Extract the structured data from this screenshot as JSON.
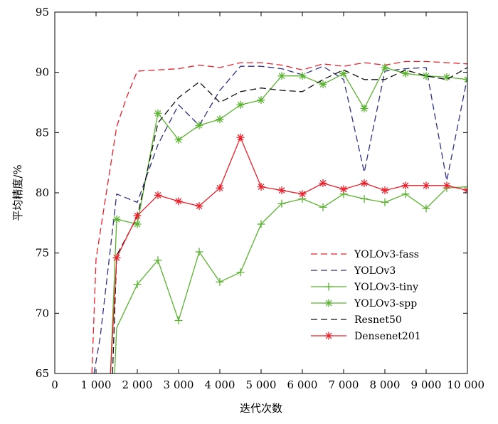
{
  "chart_data": {
    "type": "line",
    "title": "",
    "xlabel": "迭代次数",
    "ylabel": "平均精度/%",
    "xlim": [
      0,
      10000
    ],
    "ylim": [
      65,
      95
    ],
    "x_ticks": [
      {
        "value": 0,
        "label": "0"
      },
      {
        "value": 1000,
        "label": "1 000"
      },
      {
        "value": 2000,
        "label": "2 000"
      },
      {
        "value": 3000,
        "label": "3 000"
      },
      {
        "value": 4000,
        "label": "4 000"
      },
      {
        "value": 5000,
        "label": "5 000"
      },
      {
        "value": 6000,
        "label": "6 000"
      },
      {
        "value": 7000,
        "label": "7 000"
      },
      {
        "value": 8000,
        "label": "8 000"
      },
      {
        "value": 9000,
        "label": "9 000"
      },
      {
        "value": 10000,
        "label": "10 000"
      }
    ],
    "y_ticks": [
      {
        "value": 65,
        "label": "65"
      },
      {
        "value": 70,
        "label": "70"
      },
      {
        "value": 75,
        "label": "75"
      },
      {
        "value": 80,
        "label": "80"
      },
      {
        "value": 85,
        "label": "85"
      },
      {
        "value": 90,
        "label": "90"
      },
      {
        "value": 95,
        "label": "95"
      }
    ],
    "legend_position": "bottom-right",
    "series": [
      {
        "name": "YOLOv3-fass",
        "color": "#e8202a",
        "style": "dashed",
        "marker": "none",
        "points": [
          [
            900,
            65
          ],
          [
            1000,
            74.5
          ],
          [
            1250,
            80
          ],
          [
            1500,
            85.5
          ],
          [
            1750,
            88
          ],
          [
            2000,
            90.1
          ],
          [
            2500,
            90.2
          ],
          [
            3000,
            90.3
          ],
          [
            3500,
            90.6
          ],
          [
            4000,
            90.4
          ],
          [
            4500,
            90.8
          ],
          [
            5000,
            90.8
          ],
          [
            5500,
            90.6
          ],
          [
            6000,
            90.2
          ],
          [
            6500,
            90.7
          ],
          [
            7000,
            90.5
          ],
          [
            7500,
            90.8
          ],
          [
            8000,
            90.6
          ],
          [
            8500,
            90.9
          ],
          [
            9000,
            90.9
          ],
          [
            9500,
            90.8
          ],
          [
            10000,
            90.7
          ]
        ]
      },
      {
        "name": "YOLOv3",
        "color": "#2e3283",
        "style": "dashed",
        "marker": "none",
        "points": [
          [
            950,
            65
          ],
          [
            1100,
            68
          ],
          [
            1500,
            79.9
          ],
          [
            2000,
            79.2
          ],
          [
            2500,
            84
          ],
          [
            3000,
            87.3
          ],
          [
            3500,
            85.6
          ],
          [
            4000,
            88.5
          ],
          [
            4500,
            90.5
          ],
          [
            5000,
            90.5
          ],
          [
            5500,
            90.3
          ],
          [
            6000,
            89.8
          ],
          [
            6500,
            90.5
          ],
          [
            7000,
            89.4
          ],
          [
            7500,
            81.7
          ],
          [
            8000,
            90.1
          ],
          [
            8500,
            90.3
          ],
          [
            9000,
            90.4
          ],
          [
            9500,
            81
          ],
          [
            10000,
            89.6
          ]
        ]
      },
      {
        "name": "YOLOv3-tiny",
        "color": "#5ab230",
        "style": "solid",
        "marker": "plus",
        "points": [
          [
            1450,
            65
          ],
          [
            1500,
            68.8
          ],
          [
            2000,
            72.4
          ],
          [
            2500,
            74.4
          ],
          [
            3000,
            69.4
          ],
          [
            3500,
            75.1
          ],
          [
            4000,
            72.6
          ],
          [
            4500,
            73.4
          ],
          [
            5000,
            77.4
          ],
          [
            5500,
            79.1
          ],
          [
            6000,
            79.5
          ],
          [
            6500,
            78.8
          ],
          [
            7000,
            79.9
          ],
          [
            7500,
            79.5
          ],
          [
            8000,
            79.2
          ],
          [
            8500,
            79.9
          ],
          [
            9000,
            78.7
          ],
          [
            9500,
            80.4
          ],
          [
            10000,
            80.5
          ]
        ],
        "marked": [
          0,
          0,
          1,
          1,
          1,
          1,
          1,
          1,
          1,
          1,
          1,
          1,
          1,
          1,
          1,
          1,
          1,
          1,
          1
        ]
      },
      {
        "name": "YOLOv3-spp",
        "color": "#5ab230",
        "style": "solid",
        "marker": "asterisk",
        "points": [
          [
            1350,
            65
          ],
          [
            1500,
            77.8
          ],
          [
            2000,
            77.4
          ],
          [
            2500,
            86.6
          ],
          [
            3000,
            84.4
          ],
          [
            3500,
            85.6
          ],
          [
            4000,
            86.1
          ],
          [
            4500,
            87.3
          ],
          [
            5000,
            87.7
          ],
          [
            5500,
            89.7
          ],
          [
            6000,
            89.7
          ],
          [
            6500,
            89
          ],
          [
            7000,
            89.9
          ],
          [
            7500,
            87
          ],
          [
            8000,
            90.4
          ],
          [
            8500,
            89.9
          ],
          [
            9000,
            89.7
          ],
          [
            9500,
            89.6
          ],
          [
            10000,
            89.4
          ]
        ],
        "marked": [
          0,
          1,
          1,
          1,
          1,
          1,
          1,
          1,
          1,
          1,
          1,
          1,
          1,
          1,
          1,
          1,
          1,
          1,
          1
        ]
      },
      {
        "name": "Resnet50",
        "color": "#111111",
        "style": "dashed",
        "marker": "none",
        "points": [
          [
            1400,
            65
          ],
          [
            1500,
            74.8
          ],
          [
            2000,
            78
          ],
          [
            2500,
            85.8
          ],
          [
            3000,
            87.9
          ],
          [
            3500,
            89.2
          ],
          [
            4000,
            87.5
          ],
          [
            4500,
            88.4
          ],
          [
            5000,
            88.7
          ],
          [
            5500,
            88.5
          ],
          [
            6000,
            88.4
          ],
          [
            6500,
            89.4
          ],
          [
            7000,
            90.2
          ],
          [
            7500,
            89.4
          ],
          [
            8000,
            89.4
          ],
          [
            8500,
            90.2
          ],
          [
            9000,
            89.7
          ],
          [
            9500,
            89.4
          ],
          [
            10000,
            90.4
          ]
        ]
      },
      {
        "name": "Densenet201",
        "color": "#e8202a",
        "style": "solid",
        "marker": "asterisk",
        "points": [
          [
            1350,
            65
          ],
          [
            1500,
            74.6
          ],
          [
            2000,
            78.1
          ],
          [
            2500,
            79.8
          ],
          [
            3000,
            79.3
          ],
          [
            3500,
            78.9
          ],
          [
            4000,
            80.4
          ],
          [
            4500,
            84.6
          ],
          [
            5000,
            80.5
          ],
          [
            5500,
            80.2
          ],
          [
            6000,
            79.9
          ],
          [
            6500,
            80.8
          ],
          [
            7000,
            80.3
          ],
          [
            7500,
            80.8
          ],
          [
            8000,
            80.2
          ],
          [
            8500,
            80.6
          ],
          [
            9000,
            80.6
          ],
          [
            9500,
            80.6
          ],
          [
            10000,
            80.2
          ]
        ],
        "marked": [
          0,
          1,
          1,
          1,
          1,
          1,
          1,
          1,
          1,
          1,
          1,
          1,
          1,
          1,
          1,
          1,
          1,
          1,
          1
        ]
      }
    ]
  }
}
